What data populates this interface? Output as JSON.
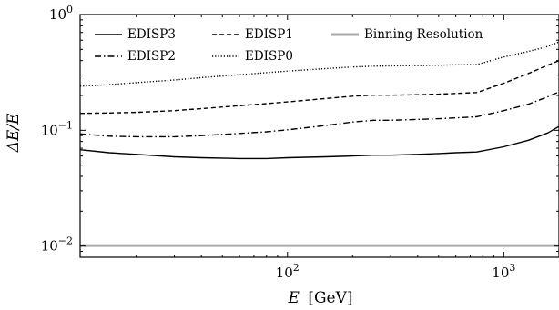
{
  "chart_data": {
    "type": "line",
    "xlabel_var": "E",
    "xlabel_unit": "[GeV]",
    "ylabel": "ΔE/E",
    "x_scale": "log",
    "y_scale": "log",
    "xlim": [
      11,
      1800
    ],
    "ylim": [
      0.008,
      1
    ],
    "x_ticks": [
      {
        "value": 100,
        "base": "10",
        "exp": "2"
      },
      {
        "value": 1000,
        "base": "10",
        "exp": "3"
      }
    ],
    "y_ticks": [
      {
        "value": 0.01,
        "base": "10",
        "exp": "−2"
      },
      {
        "value": 0.1,
        "base": "10",
        "exp": "−1"
      },
      {
        "value": 1,
        "base": "10",
        "exp": "0"
      }
    ],
    "grid": false,
    "legend_placement": "top",
    "series": [
      {
        "name": "EDISP3",
        "style": "solid",
        "color": "#000000",
        "x": [
          11,
          15,
          20,
          30,
          40,
          60,
          80,
          100,
          150,
          200,
          250,
          300,
          400,
          500,
          600,
          750,
          1000,
          1300,
          1600,
          1800
        ],
        "y": [
          0.068,
          0.064,
          0.062,
          0.059,
          0.058,
          0.057,
          0.057,
          0.058,
          0.059,
          0.06,
          0.061,
          0.061,
          0.062,
          0.063,
          0.064,
          0.065,
          0.072,
          0.082,
          0.095,
          0.108
        ]
      },
      {
        "name": "EDISP2",
        "style": "dashdot",
        "color": "#000000",
        "x": [
          11,
          15,
          20,
          30,
          40,
          60,
          80,
          100,
          150,
          200,
          250,
          300,
          400,
          500,
          600,
          750,
          1000,
          1300,
          1600,
          1800
        ],
        "y": [
          0.093,
          0.089,
          0.088,
          0.088,
          0.09,
          0.094,
          0.097,
          0.101,
          0.11,
          0.118,
          0.122,
          0.122,
          0.124,
          0.126,
          0.128,
          0.131,
          0.148,
          0.168,
          0.195,
          0.215
        ]
      },
      {
        "name": "EDISP1",
        "style": "dashed",
        "color": "#000000",
        "x": [
          11,
          15,
          20,
          30,
          40,
          60,
          80,
          100,
          150,
          200,
          250,
          300,
          400,
          500,
          600,
          750,
          1000,
          1300,
          1600,
          1800
        ],
        "y": [
          0.14,
          0.141,
          0.143,
          0.148,
          0.154,
          0.163,
          0.17,
          0.176,
          0.188,
          0.197,
          0.201,
          0.201,
          0.203,
          0.205,
          0.208,
          0.212,
          0.255,
          0.31,
          0.365,
          0.4
        ]
      },
      {
        "name": "EDISP0",
        "style": "dotted",
        "color": "#000000",
        "x": [
          11,
          15,
          20,
          30,
          40,
          60,
          80,
          100,
          150,
          200,
          250,
          300,
          400,
          500,
          600,
          750,
          1000,
          1300,
          1600,
          1800
        ],
        "y": [
          0.24,
          0.248,
          0.258,
          0.272,
          0.285,
          0.302,
          0.315,
          0.325,
          0.341,
          0.352,
          0.358,
          0.36,
          0.362,
          0.365,
          0.368,
          0.37,
          0.43,
          0.48,
          0.53,
          0.58
        ]
      },
      {
        "name": "Binning Resolution",
        "style": "solid",
        "color": "#aaaaaa",
        "x": [
          11,
          1800
        ],
        "y": [
          0.0101,
          0.0101
        ]
      }
    ]
  }
}
